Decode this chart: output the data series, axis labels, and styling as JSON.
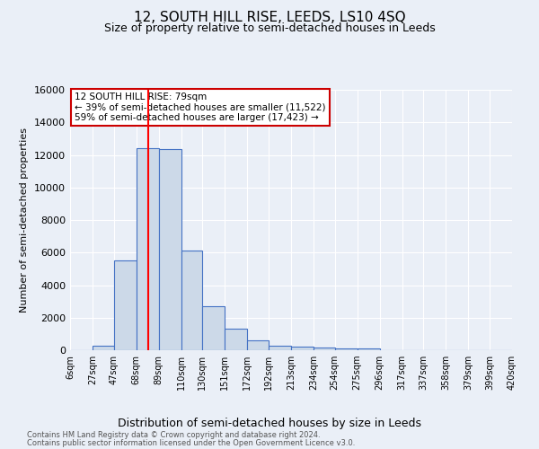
{
  "title": "12, SOUTH HILL RISE, LEEDS, LS10 4SQ",
  "subtitle": "Size of property relative to semi-detached houses in Leeds",
  "xlabel": "Distribution of semi-detached houses by size in Leeds",
  "ylabel": "Number of semi-detached properties",
  "footnote1": "Contains HM Land Registry data © Crown copyright and database right 2024.",
  "footnote2": "Contains public sector information licensed under the Open Government Licence v3.0.",
  "annotation_title": "12 SOUTH HILL RISE: 79sqm",
  "annotation_line1": "← 39% of semi-detached houses are smaller (11,522)",
  "annotation_line2": "59% of semi-detached houses are larger (17,423) →",
  "property_size": 79,
  "bar_edges": [
    6,
    27,
    47,
    68,
    89,
    110,
    130,
    151,
    172,
    192,
    213,
    234,
    254,
    275,
    296,
    317,
    337,
    358,
    379,
    399,
    420
  ],
  "bar_heights": [
    0,
    280,
    5520,
    12400,
    12350,
    6150,
    2720,
    1340,
    600,
    280,
    200,
    150,
    130,
    100,
    0,
    0,
    0,
    0,
    0,
    0
  ],
  "bar_color": "#ccd9e8",
  "bar_edge_color": "#4472c4",
  "red_line_x": 79,
  "ylim": [
    0,
    16000
  ],
  "yticks": [
    0,
    2000,
    4000,
    6000,
    8000,
    10000,
    12000,
    14000,
    16000
  ],
  "background_color": "#eaeff7",
  "plot_background": "#eaeff7",
  "grid_color": "#ffffff",
  "annotation_box_color": "#ffffff",
  "annotation_box_edge": "#cc0000"
}
